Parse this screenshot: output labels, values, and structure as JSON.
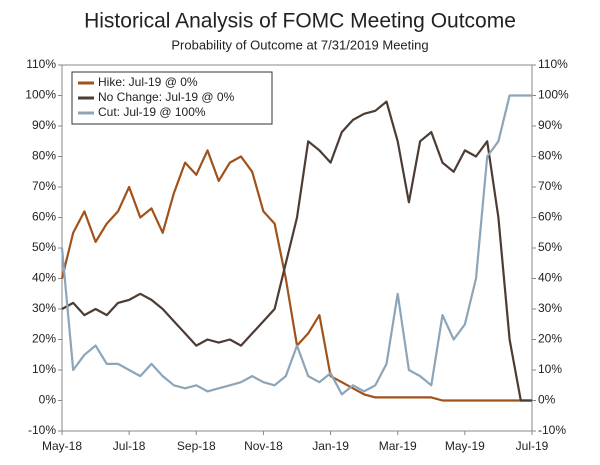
{
  "chart_data": {
    "type": "line",
    "title": "Historical Analysis of FOMC Meeting Outcome",
    "subtitle": "Probability of Outcome at 7/31/2019 Meeting",
    "categories": [
      "May-18",
      null,
      null,
      null,
      null,
      null,
      "Jul-18",
      null,
      null,
      null,
      null,
      null,
      "Sep-18",
      null,
      null,
      null,
      null,
      null,
      "Nov-18",
      null,
      null,
      null,
      null,
      null,
      "Jan-19",
      null,
      null,
      null,
      null,
      null,
      "Mar-19",
      null,
      null,
      null,
      null,
      null,
      "May-19",
      null,
      null,
      null,
      null,
      null,
      "Jul-19"
    ],
    "series": [
      {
        "name": "Hike: Jul-19 @ 0%",
        "color": "#a0521c",
        "values": [
          40,
          55,
          62,
          52,
          58,
          62,
          70,
          60,
          63,
          55,
          68,
          78,
          74,
          82,
          72,
          78,
          80,
          75,
          62,
          58,
          40,
          18,
          22,
          28,
          8,
          6,
          4,
          2,
          1,
          1,
          1,
          1,
          1,
          1,
          0,
          0,
          0,
          0,
          0,
          0,
          0,
          0,
          0
        ]
      },
      {
        "name": "No Change: Jul-19 @ 0%",
        "color": "#4d3c33",
        "values": [
          30,
          32,
          28,
          30,
          28,
          32,
          33,
          35,
          33,
          30,
          26,
          22,
          18,
          20,
          19,
          20,
          18,
          22,
          26,
          30,
          45,
          60,
          85,
          82,
          78,
          88,
          92,
          94,
          95,
          98,
          85,
          65,
          85,
          88,
          78,
          75,
          82,
          80,
          85,
          60,
          20,
          0,
          0
        ]
      },
      {
        "name": "Cut: Jul-19 @ 100%",
        "color": "#8ca5b8",
        "values": [
          50,
          10,
          15,
          18,
          12,
          12,
          10,
          8,
          12,
          8,
          5,
          4,
          5,
          3,
          4,
          5,
          6,
          8,
          6,
          5,
          8,
          18,
          8,
          6,
          9,
          2,
          5,
          3,
          5,
          12,
          35,
          10,
          8,
          5,
          28,
          20,
          25,
          40,
          80,
          85,
          100,
          100,
          100
        ]
      }
    ],
    "ylim": [
      -10,
      110
    ],
    "yticks": [
      {
        "value": -10,
        "label": "-10%"
      },
      {
        "value": 0,
        "label": "0%"
      },
      {
        "value": 10,
        "label": "10%"
      },
      {
        "value": 20,
        "label": "20%"
      },
      {
        "value": 30,
        "label": "30%"
      },
      {
        "value": 40,
        "label": "40%"
      },
      {
        "value": 50,
        "label": "50%"
      },
      {
        "value": 60,
        "label": "60%"
      },
      {
        "value": 70,
        "label": "70%"
      },
      {
        "value": 80,
        "label": "80%"
      },
      {
        "value": 90,
        "label": "90%"
      },
      {
        "value": 100,
        "label": "100%"
      },
      {
        "value": 110,
        "label": "110%"
      }
    ],
    "y2lim": [
      -10,
      110
    ],
    "y2ticks": [
      {
        "value": -10,
        "label": "-10%"
      },
      {
        "value": 0,
        "label": "0%"
      },
      {
        "value": 10,
        "label": "10%"
      },
      {
        "value": 20,
        "label": "20%"
      },
      {
        "value": 30,
        "label": "30%"
      },
      {
        "value": 40,
        "label": "40%"
      },
      {
        "value": 50,
        "label": "50%"
      },
      {
        "value": 60,
        "label": "60%"
      },
      {
        "value": 70,
        "label": "70%"
      },
      {
        "value": 80,
        "label": "80%"
      },
      {
        "value": 90,
        "label": "90%"
      },
      {
        "value": 100,
        "label": "100%"
      },
      {
        "value": 110,
        "label": "110%"
      }
    ],
    "legend": "upper left",
    "grid": false
  }
}
